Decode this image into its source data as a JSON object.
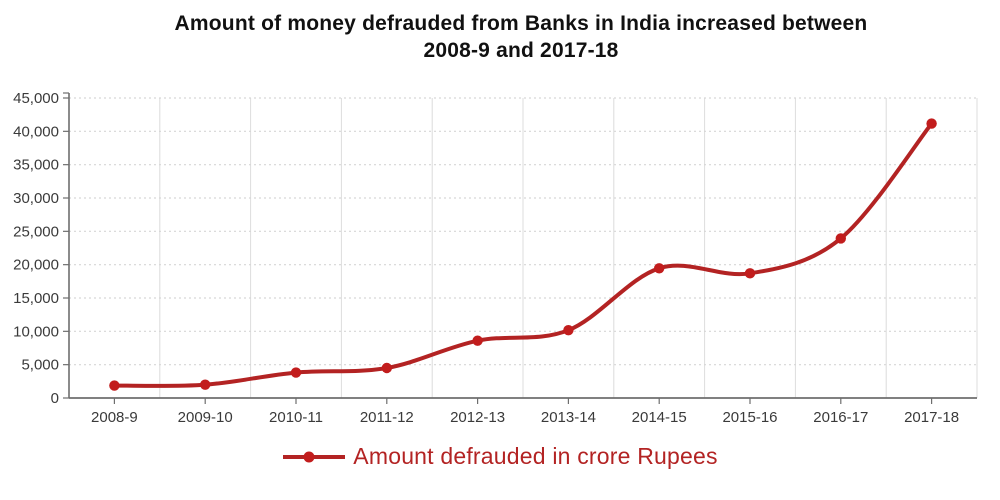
{
  "title": {
    "line1": "Amount of money defrauded from Banks in India increased between",
    "line2": "2008-9 and 2017-18"
  },
  "legend": {
    "label": "Amount defrauded in crore Rupees"
  },
  "chart_data": {
    "type": "line",
    "title": "Amount of money defrauded from Banks in India increased between 2008-9 and 2017-18",
    "categories": [
      "2008-9",
      "2009-10",
      "2010-11",
      "2011-12",
      "2012-13",
      "2013-14",
      "2014-15",
      "2015-16",
      "2016-17",
      "2017-18"
    ],
    "series": [
      {
        "name": "Amount defrauded in crore Rupees",
        "values": [
          1860,
          2000,
          3815,
          4500,
          8590,
          10170,
          19455,
          18700,
          23935,
          41165
        ]
      }
    ],
    "xlabel": "",
    "ylabel": "",
    "ylim": [
      0,
      45000
    ],
    "yticks": [
      0,
      5000,
      10000,
      15000,
      20000,
      25000,
      30000,
      35000,
      40000,
      45000
    ],
    "grid": true,
    "line_style": "smooth",
    "marker": "circle",
    "legend_position": "bottom",
    "colors": {
      "line": "#B32323",
      "marker": "#C21D1D",
      "legend_text": "#B32323",
      "grid_h": "#D6D6D6",
      "grid_v": "#DCDCDC",
      "axis": "#6E6E6E",
      "tick_text": "#3A3A3A",
      "title_text": "#111111",
      "background": "#FFFFFF"
    }
  }
}
